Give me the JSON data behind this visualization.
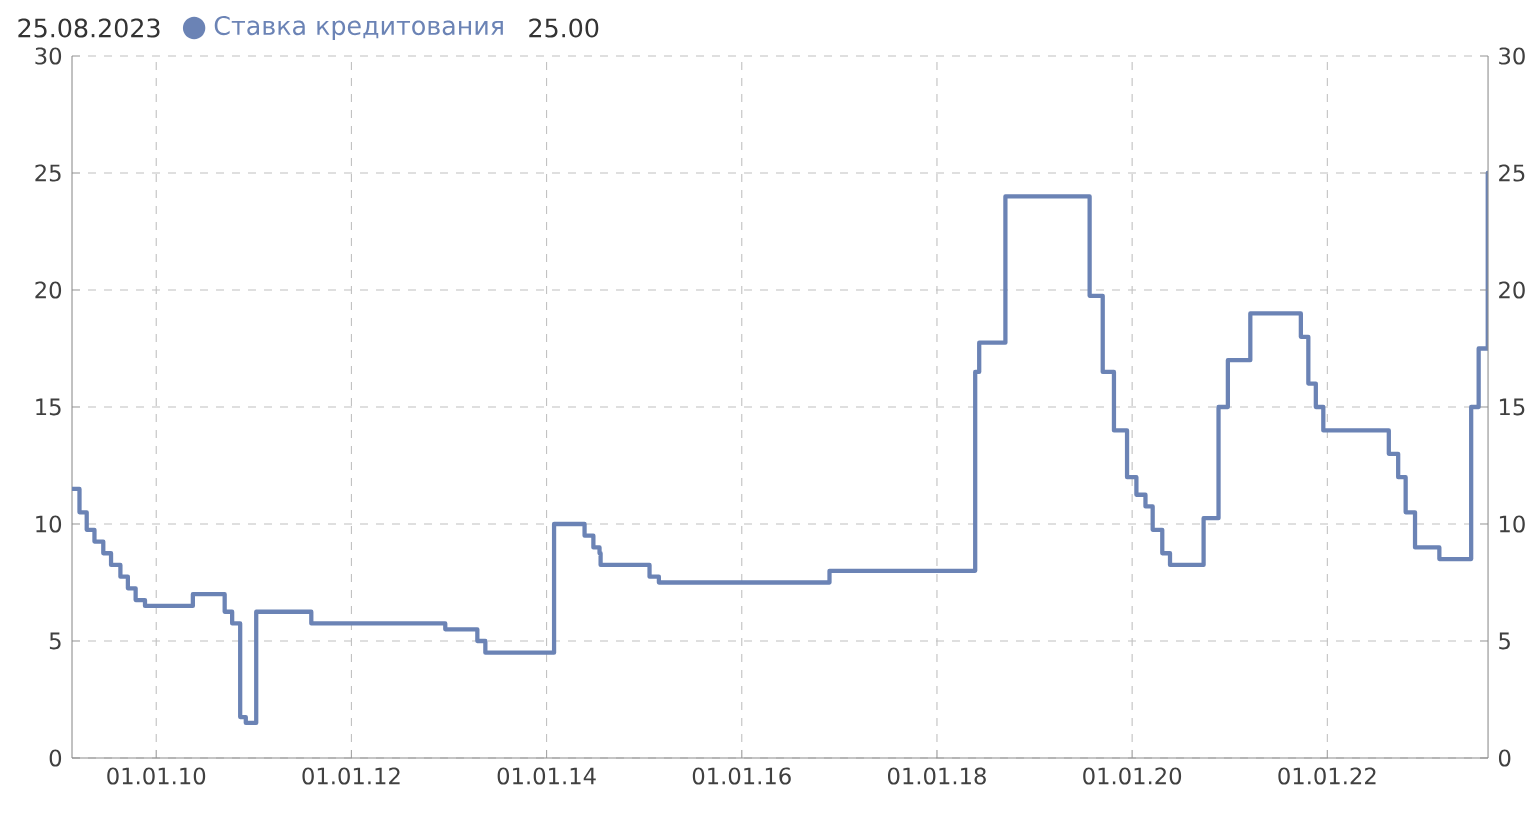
{
  "chart_data": {
    "type": "step",
    "x": [
      "2009-02-20",
      "2009-03-20",
      "2009-04-16",
      "2009-05-15",
      "2009-06-17",
      "2009-07-16",
      "2009-08-20",
      "2009-09-17",
      "2009-10-16",
      "2009-11-20",
      "2010-05-18",
      "2010-09-14",
      "2010-10-12",
      "2010-11-11",
      "2010-12-02",
      "2011-01-10",
      "2011-08-04",
      "2012-12-18",
      "2013-04-17",
      "2013-05-17",
      "2014-01-29",
      "2014-05-23",
      "2014-06-25",
      "2014-07-18",
      "2014-07-22",
      "2015-01-21",
      "2015-02-25",
      "2016-11-25",
      "2018-05-24",
      "2018-06-08",
      "2018-09-14",
      "2019-07-26",
      "2019-09-13",
      "2019-10-25",
      "2019-12-13",
      "2020-01-17",
      "2020-02-20",
      "2020-03-18",
      "2020-04-23",
      "2020-05-22",
      "2020-09-25",
      "2020-11-20",
      "2020-12-25",
      "2021-03-19",
      "2021-09-24",
      "2021-10-22",
      "2021-11-19",
      "2021-12-17",
      "2022-08-19",
      "2022-09-23",
      "2022-10-21",
      "2022-11-25",
      "2023-02-24",
      "2023-06-23",
      "2023-07-21",
      "2023-08-24",
      "2023-08-25"
    ],
    "series": [
      {
        "name": "Ставка кредитования",
        "color": "#6b83b5",
        "values": [
          11.5,
          10.5,
          9.75,
          9.25,
          8.75,
          8.25,
          7.75,
          7.25,
          6.75,
          6.5,
          7.0,
          6.25,
          5.75,
          1.75,
          1.5,
          6.25,
          5.75,
          5.5,
          5.0,
          4.5,
          10.0,
          9.5,
          9.0,
          8.75,
          8.25,
          7.75,
          7.5,
          8.0,
          16.5,
          17.75,
          24.0,
          19.75,
          16.5,
          14.0,
          12.0,
          11.25,
          10.75,
          9.75,
          8.75,
          8.25,
          10.25,
          15.0,
          17.0,
          19.0,
          18.0,
          16.0,
          15.0,
          14.0,
          13.0,
          12.0,
          10.5,
          9.0,
          8.5,
          15.0,
          17.5,
          25.0,
          25.0
        ]
      }
    ],
    "xlim": [
      "2009-02-20",
      "2023-08-25"
    ],
    "xticks": [
      {
        "value": "2010-01-01",
        "label": "01.01.10"
      },
      {
        "value": "2012-01-01",
        "label": "01.01.12"
      },
      {
        "value": "2014-01-01",
        "label": "01.01.14"
      },
      {
        "value": "2016-01-01",
        "label": "01.01.16"
      },
      {
        "value": "2018-01-01",
        "label": "01.01.18"
      },
      {
        "value": "2020-01-01",
        "label": "01.01.20"
      },
      {
        "value": "2022-01-01",
        "label": "01.01.22"
      }
    ],
    "ylim": [
      0,
      30
    ],
    "yticks": [
      0,
      5,
      10,
      15,
      20,
      25,
      30
    ],
    "y2lim": [
      0,
      30
    ],
    "y2ticks": [
      0,
      5,
      10,
      15,
      20,
      25,
      30
    ],
    "annotations": [
      "25.08.2023",
      "25.00"
    ],
    "legend": "top left",
    "grid": true,
    "marker": "none",
    "line_style": "solid"
  }
}
